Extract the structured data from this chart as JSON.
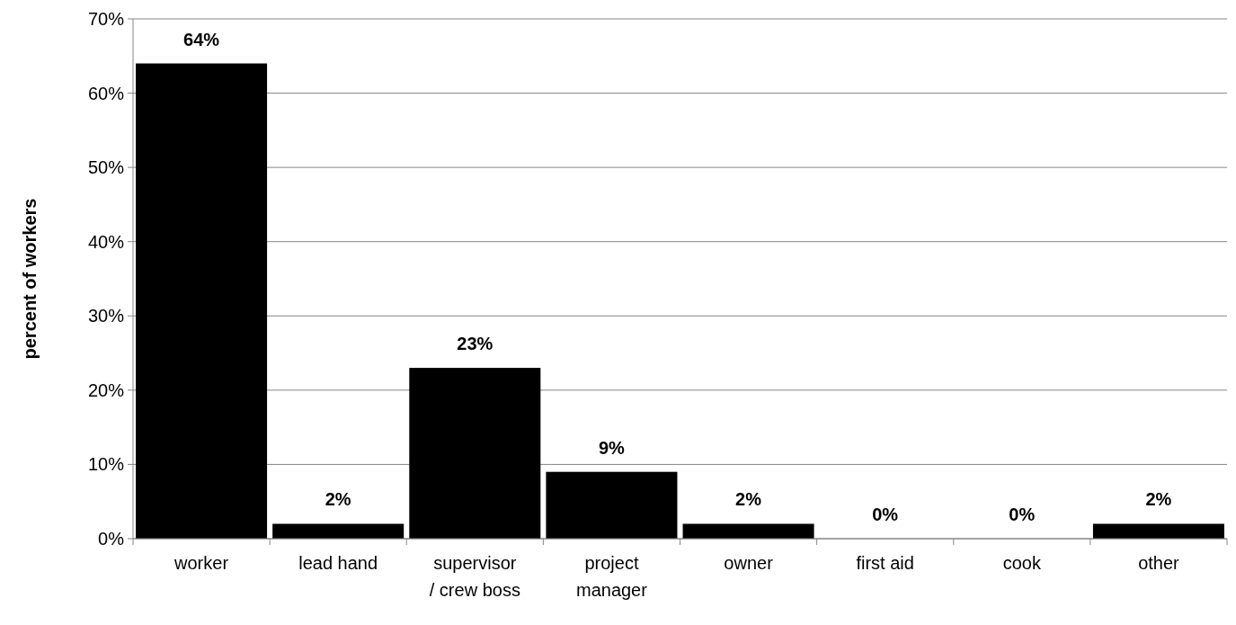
{
  "chart_data": {
    "type": "bar",
    "ylabel": "percent of workers",
    "categories": [
      "worker",
      "lead hand",
      "supervisor / crew boss",
      "project manager",
      "owner",
      "first aid",
      "cook",
      "other"
    ],
    "values": [
      64,
      2,
      23,
      9,
      2,
      0,
      0,
      2
    ],
    "value_labels": [
      "64%",
      "2%",
      "23%",
      "9%",
      "2%",
      "0%",
      "0%",
      "2%"
    ],
    "color": "#000000",
    "ylim": [
      0,
      70
    ],
    "yticks": [
      {
        "value": 0,
        "label": "0%"
      },
      {
        "value": 10,
        "label": "10%"
      },
      {
        "value": 20,
        "label": "20%"
      },
      {
        "value": 30,
        "label": "30%"
      },
      {
        "value": 40,
        "label": "40%"
      },
      {
        "value": 50,
        "label": "50%"
      },
      {
        "value": 60,
        "label": "60%"
      },
      {
        "value": 70,
        "label": "70%"
      }
    ],
    "grid": "y"
  }
}
